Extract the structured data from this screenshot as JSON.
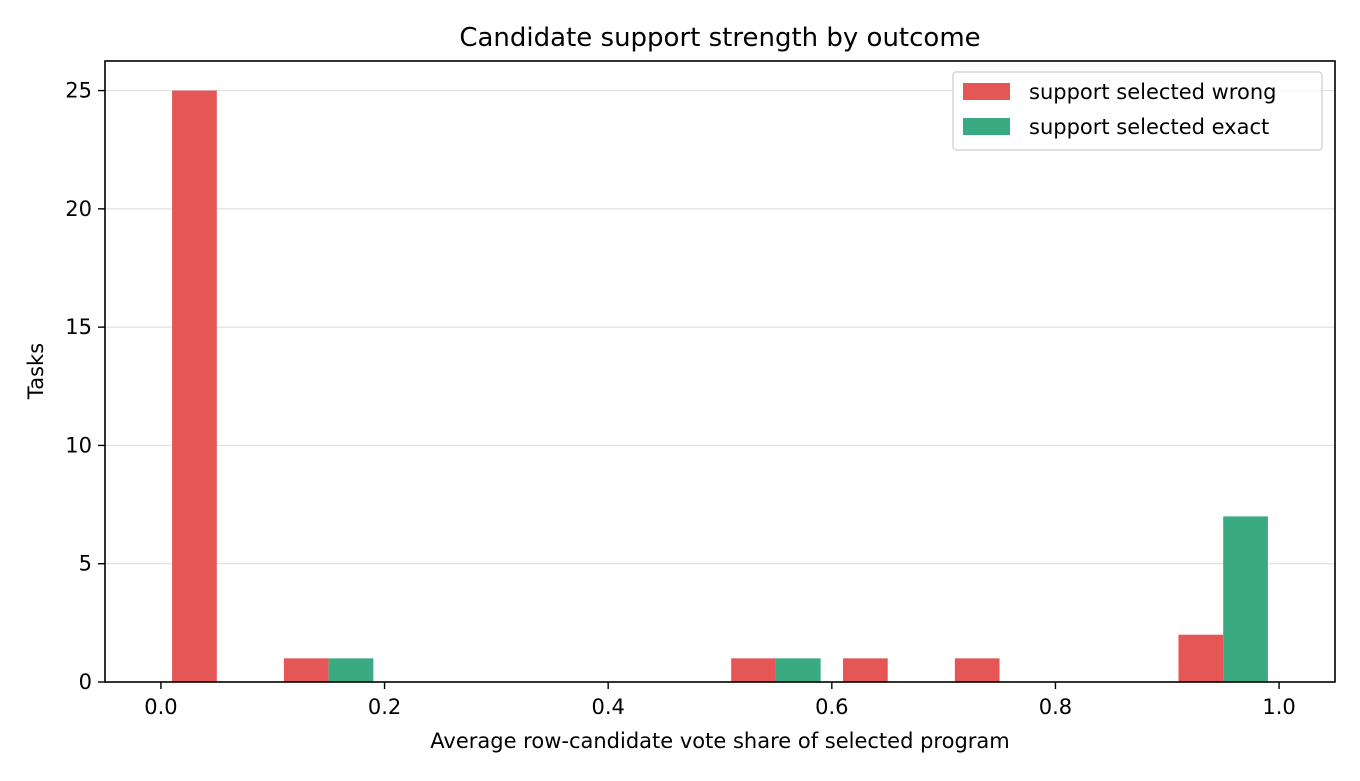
{
  "chart_data": {
    "type": "bar",
    "title": "Candidate support strength by outcome",
    "xlabel": "Average row-candidate vote share of selected program",
    "ylabel": "Tasks",
    "xlim": [
      -0.05,
      1.05
    ],
    "ylim": [
      0,
      26.25
    ],
    "xticks": [
      0.0,
      0.2,
      0.4,
      0.6,
      0.8,
      1.0
    ],
    "xtick_labels": [
      "0.0",
      "0.2",
      "0.4",
      "0.6",
      "0.8",
      "1.0"
    ],
    "yticks": [
      0,
      5,
      10,
      15,
      20,
      25
    ],
    "ytick_labels": [
      "0",
      "5",
      "10",
      "15",
      "20",
      "25"
    ],
    "grid": "y",
    "legend": "top-right",
    "bin_edges": [
      0.01,
      0.11,
      0.21,
      0.31,
      0.41,
      0.51,
      0.61,
      0.71,
      0.81,
      0.91,
      1.01
    ],
    "series": [
      {
        "name": "support selected wrong",
        "color": "#e45756",
        "values": [
          25,
          1,
          0,
          0,
          0,
          1,
          1,
          1,
          0,
          2
        ]
      },
      {
        "name": "support selected exact",
        "color": "#3aaa83",
        "values": [
          0,
          1,
          0,
          0,
          0,
          1,
          0,
          0,
          0,
          7
        ]
      }
    ]
  }
}
